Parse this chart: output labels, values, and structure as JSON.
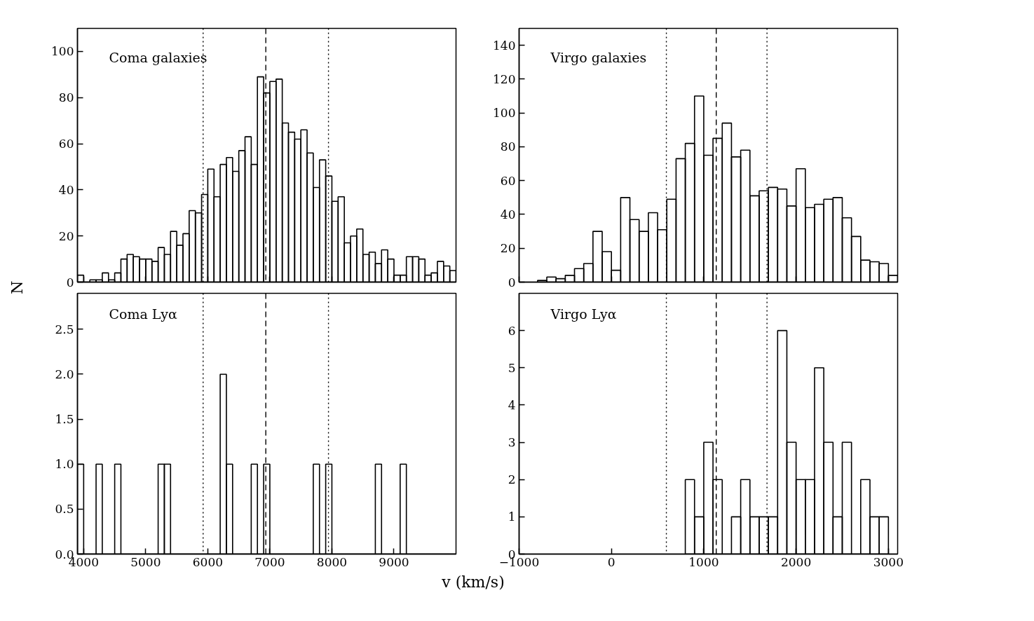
{
  "chart_data": [
    {
      "type": "histogram",
      "ylabel": "N",
      "annotations": [
        "Coma galaxies"
      ],
      "tick_labels": "y",
      "bins": [
        3900,
        4000,
        4100,
        4200,
        4300,
        4400,
        4500,
        4600,
        4700,
        4800,
        4900,
        5000,
        5100,
        5200,
        5300,
        5400,
        5500,
        5600,
        5700,
        5800,
        5900,
        6000,
        6100,
        6200,
        6300,
        6400,
        6500,
        6600,
        6700,
        6800,
        6900,
        7000,
        7100,
        7200,
        7300,
        7400,
        7500,
        7600,
        7700,
        7800,
        7900,
        8000,
        8100,
        8200,
        8300,
        8400,
        8500,
        8600,
        8700,
        8800,
        8900,
        9000,
        9100,
        9200,
        9300,
        9400,
        9500,
        9600,
        9700,
        9800,
        9900,
        10000
      ],
      "values": [
        3,
        0,
        1,
        1,
        4,
        1,
        4,
        10,
        12,
        11,
        10,
        10,
        9,
        15,
        12,
        22,
        16,
        21,
        31,
        30,
        38,
        49,
        37,
        51,
        54,
        48,
        57,
        63,
        51,
        89,
        82,
        87,
        88,
        69,
        65,
        62,
        66,
        56,
        41,
        53,
        46,
        35,
        37,
        17,
        20,
        23,
        12,
        13,
        8,
        14,
        10,
        3,
        3,
        11,
        11,
        10,
        3,
        4,
        9,
        7,
        5
      ],
      "color": "#000000",
      "xlim": [
        3900,
        10000
      ],
      "xticks": [
        4000,
        5000,
        6000,
        7000,
        8000,
        9000
      ],
      "ylim": [
        0,
        110
      ],
      "yticks": [
        0,
        20,
        40,
        60,
        80,
        100
      ],
      "grid": false,
      "ref_lines": [
        {
          "axis": "x",
          "value": 5925,
          "line_style": "dotted"
        },
        {
          "axis": "x",
          "value": 6935,
          "line_style": "dashed"
        },
        {
          "axis": "x",
          "value": 7945,
          "line_style": "dotted"
        }
      ]
    },
    {
      "type": "histogram",
      "annotations": [
        "Virgo galaxies"
      ],
      "tick_labels": "y",
      "bins": [
        -800,
        -700,
        -600,
        -500,
        -400,
        -300,
        -200,
        -100,
        0,
        100,
        200,
        300,
        400,
        500,
        600,
        700,
        800,
        900,
        1000,
        1100,
        1200,
        1300,
        1400,
        1500,
        1600,
        1700,
        1800,
        1900,
        2000,
        2100,
        2200,
        2300,
        2400,
        2500,
        2600,
        2700,
        2800,
        2900,
        3000,
        3100
      ],
      "values": [
        1,
        3,
        2,
        4,
        8,
        11,
        30,
        18,
        7,
        50,
        37,
        30,
        41,
        31,
        49,
        73,
        82,
        110,
        75,
        85,
        94,
        74,
        78,
        51,
        54,
        56,
        55,
        45,
        67,
        44,
        46,
        49,
        50,
        38,
        27,
        13,
        12,
        11,
        4
      ],
      "color": "#000000",
      "xlim": [
        -1000,
        3100
      ],
      "xticks": [
        -1000,
        0,
        1000,
        2000,
        3000
      ],
      "ylim": [
        0,
        150
      ],
      "yticks": [
        0,
        20,
        40,
        60,
        80,
        100,
        120,
        140
      ],
      "grid": false,
      "ref_lines": [
        {
          "axis": "x",
          "value": 595,
          "line_style": "dotted"
        },
        {
          "axis": "x",
          "value": 1135,
          "line_style": "dashed"
        },
        {
          "axis": "x",
          "value": 1685,
          "line_style": "dotted"
        }
      ]
    },
    {
      "type": "histogram",
      "xlabel": "v (km/s)",
      "annotations": [
        "Coma Lyα"
      ],
      "bins": [
        3900,
        4000,
        4100,
        4200,
        4300,
        4400,
        4500,
        4600,
        4700,
        4800,
        4900,
        5000,
        5100,
        5200,
        5300,
        5400,
        5500,
        5600,
        5700,
        5800,
        5900,
        6000,
        6100,
        6200,
        6300,
        6400,
        6500,
        6600,
        6700,
        6800,
        6900,
        7000,
        7100,
        7200,
        7300,
        7400,
        7500,
        7600,
        7700,
        7800,
        7900,
        8000,
        8100,
        8200,
        8300,
        8400,
        8500,
        8600,
        8700,
        8800,
        8900,
        9000,
        9100,
        9200,
        9300,
        9400,
        9500,
        9600,
        9700,
        9800,
        9900,
        10000
      ],
      "values": [
        1,
        0,
        0,
        1,
        0,
        0,
        1,
        0,
        0,
        0,
        0,
        0,
        0,
        1,
        1,
        0,
        0,
        0,
        0,
        0,
        0,
        0,
        0,
        2,
        1,
        0,
        0,
        0,
        1,
        0,
        1,
        0,
        0,
        0,
        0,
        0,
        0,
        0,
        1,
        0,
        1,
        0,
        0,
        0,
        0,
        0,
        0,
        0,
        1,
        0,
        0,
        0,
        1,
        0,
        0,
        0,
        0,
        0,
        0,
        0,
        0
      ],
      "color": "#000000",
      "xlim": [
        3900,
        10000
      ],
      "xticks": [
        4000,
        5000,
        6000,
        7000,
        8000,
        9000
      ],
      "ylim": [
        0,
        2.9
      ],
      "yticks": [
        {
          "value": 0,
          "label": "0.0"
        },
        0.5,
        {
          "value": 1,
          "label": "1.0"
        },
        1.5,
        {
          "value": 2,
          "label": "2.0"
        },
        2.5
      ],
      "grid": false,
      "ref_lines": [
        {
          "axis": "x",
          "value": 5925,
          "line_style": "dotted"
        },
        {
          "axis": "x",
          "value": 6935,
          "line_style": "dashed"
        },
        {
          "axis": "x",
          "value": 7945,
          "line_style": "dotted"
        }
      ]
    },
    {
      "type": "histogram",
      "annotations": [
        "Virgo Lyα"
      ],
      "bins": [
        800,
        900,
        1000,
        1100,
        1200,
        1300,
        1400,
        1500,
        1600,
        1700,
        1800,
        1900,
        2000,
        2100,
        2200,
        2300,
        2400,
        2500,
        2600,
        2700,
        2800,
        2900,
        3000
      ],
      "values": [
        2,
        1,
        3,
        2,
        0,
        1,
        2,
        1,
        1,
        1,
        6,
        3,
        2,
        2,
        5,
        3,
        1,
        3,
        0,
        2,
        1,
        1
      ],
      "color": "#000000",
      "xlim": [
        -1000,
        3100
      ],
      "xticks": [
        {
          "value": -1000,
          "label": "−1000"
        },
        0,
        1000,
        2000,
        3000
      ],
      "ylim": [
        0,
        7
      ],
      "yticks": [
        0,
        1,
        2,
        3,
        4,
        5,
        6
      ],
      "grid": false,
      "ref_lines": [
        {
          "axis": "x",
          "value": 595,
          "line_style": "dotted"
        },
        {
          "axis": "x",
          "value": 1135,
          "line_style": "dashed"
        },
        {
          "axis": "x",
          "value": 1685,
          "line_style": "dotted"
        }
      ]
    }
  ]
}
